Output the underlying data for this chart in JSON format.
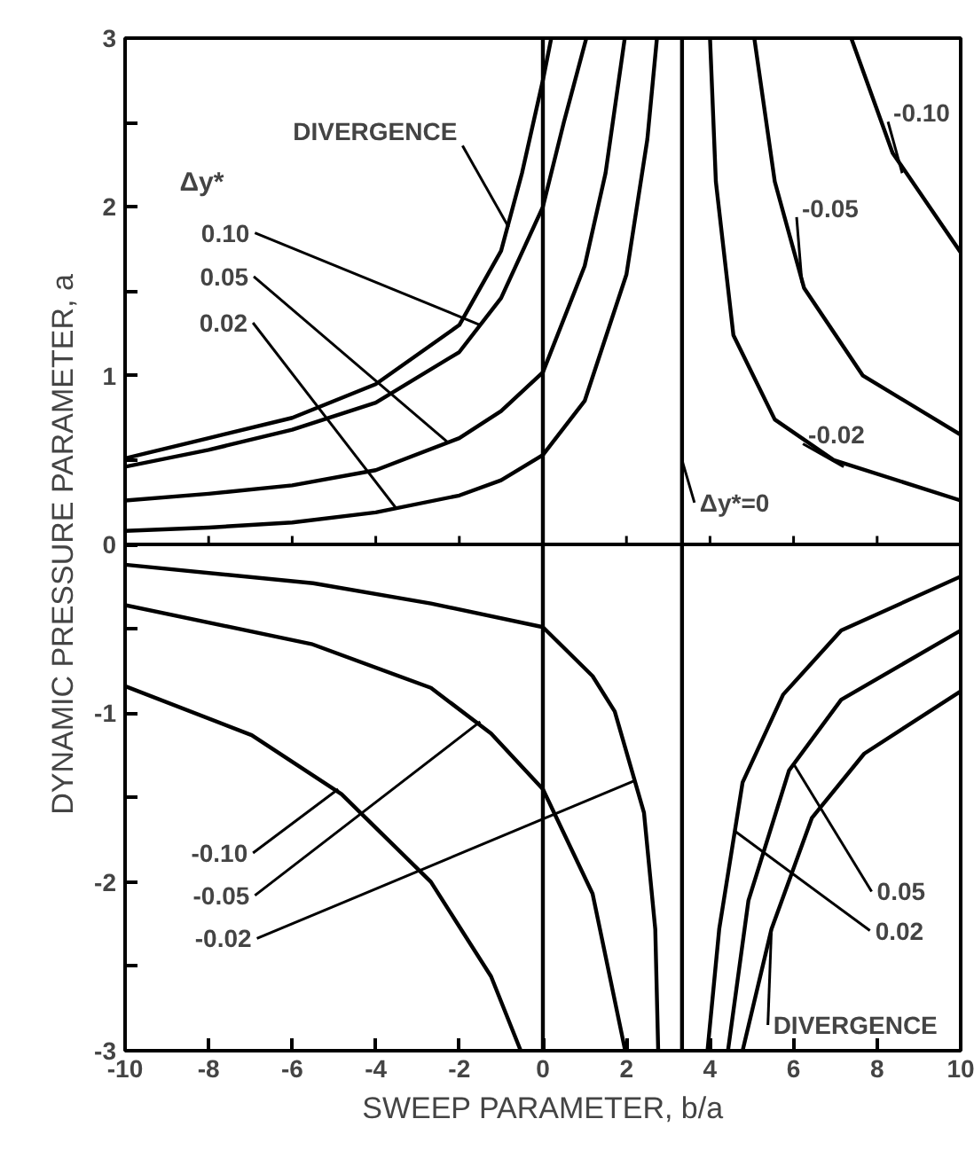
{
  "chart_data": {
    "type": "line",
    "xlabel": "SWEEP PARAMETER, b/a",
    "ylabel": "DYNAMIC PRESSURE PARAMETER, a",
    "xlim": [
      -10,
      10
    ],
    "ylim": [
      -3,
      3
    ],
    "xticks": [
      -10,
      -8,
      -6,
      -4,
      -2,
      0,
      2,
      4,
      6,
      8,
      10
    ],
    "yticks": [
      -3,
      {
        "value": -2.5,
        "label": null
      },
      -2,
      {
        "value": -1.5,
        "label": null
      },
      -1,
      {
        "value": -0.5,
        "label": null
      },
      0,
      {
        "value": 0.5,
        "label": null
      },
      1,
      {
        "value": 1.5,
        "label": null
      },
      2,
      {
        "value": 2.5,
        "label": null
      },
      3
    ],
    "grid": false,
    "marker": "none",
    "line_style": "solid",
    "legend_title": "Δy*",
    "series": [
      {
        "color": "#000000",
        "x": [
          -10,
          -8,
          -6,
          -4,
          -2,
          -1,
          -0.5,
          0,
          0.2
        ],
        "values": [
          0.51,
          0.63,
          0.75,
          0.95,
          1.3,
          1.74,
          2.2,
          2.75,
          3
        ]
      },
      {
        "color": "#000000",
        "x": [
          -10,
          -8,
          -6,
          -4,
          -2,
          -1,
          0,
          0.5,
          1.04
        ],
        "values": [
          0.46,
          0.56,
          0.68,
          0.84,
          1.14,
          1.46,
          2.0,
          2.5,
          3
        ]
      },
      {
        "color": "#000000",
        "x": [
          -10,
          -8,
          -6,
          -4,
          -2,
          -1,
          0,
          1,
          1.5,
          1.96
        ],
        "values": [
          0.26,
          0.3,
          0.35,
          0.44,
          0.63,
          0.79,
          1.02,
          1.65,
          2.2,
          3
        ]
      },
      {
        "color": "#000000",
        "x": [
          -10,
          -8,
          -6,
          -4,
          -2,
          -1,
          0,
          1,
          2,
          2.5,
          2.73
        ],
        "values": [
          0.08,
          0.1,
          0.13,
          0.19,
          0.29,
          0.38,
          0.53,
          0.85,
          1.6,
          2.4,
          3
        ]
      },
      {
        "color": "#000000",
        "x": [
          4.0,
          4.14,
          4.56,
          5.55,
          6.96,
          10
        ],
        "values": [
          3,
          2.15,
          1.24,
          0.74,
          0.5,
          0.26
        ]
      },
      {
        "color": "#000000",
        "x": [
          5.06,
          5.55,
          6.25,
          7.66,
          10
        ],
        "values": [
          3,
          2.15,
          1.52,
          1.0,
          0.65
        ]
      },
      {
        "color": "#000000",
        "x": [
          7.38,
          8.37,
          10
        ],
        "values": [
          3,
          2.32,
          1.73
        ]
      },
      {
        "color": "#000000",
        "x": [
          -10,
          -5.5,
          -2.68,
          0,
          1.19,
          1.72,
          2.42,
          2.69,
          2.76
        ],
        "values": [
          -0.12,
          -0.23,
          -0.35,
          -0.49,
          -0.78,
          -0.99,
          -1.59,
          -2.28,
          -3
        ]
      },
      {
        "color": "#000000",
        "x": [
          -10,
          -5.54,
          -2.68,
          -1.24,
          0,
          1.19,
          1.97
        ],
        "values": [
          -0.36,
          -0.59,
          -0.85,
          -1.12,
          -1.45,
          -2.07,
          -3
        ]
      },
      {
        "color": "#000000",
        "x": [
          -10,
          -6.97,
          -4.82,
          -2.68,
          -1.24,
          -0.53
        ],
        "values": [
          -0.84,
          -1.13,
          -1.48,
          -2.0,
          -2.56,
          -3
        ]
      },
      {
        "color": "#000000",
        "x": [
          3.94,
          4.22,
          4.78,
          5.75,
          7.14,
          10
        ],
        "values": [
          -3,
          -2.28,
          -1.41,
          -0.89,
          -0.51,
          -0.19
        ]
      },
      {
        "color": "#000000",
        "x": [
          4.43,
          4.92,
          5.89,
          7.14,
          10
        ],
        "values": [
          -3,
          -2.11,
          -1.34,
          -0.92,
          -0.51
        ]
      },
      {
        "color": "#000000",
        "x": [
          4.78,
          5.47,
          6.44,
          7.69,
          10
        ],
        "values": [
          -3,
          -2.28,
          -1.62,
          -1.24,
          -0.87
        ]
      },
      {
        "color": "#000000",
        "x": [
          3.33,
          3.33
        ],
        "values": [
          -3,
          3
        ]
      },
      {
        "color": "#000000",
        "x": [
          0,
          0
        ],
        "values": [
          -3,
          3
        ]
      }
    ],
    "ref_lines": [
      {
        "axis": "y",
        "value": 0
      }
    ],
    "annotations": [
      {
        "text": "DIVERGENCE",
        "x": -0.82,
        "y": 1.88
      },
      {
        "text": "0.10",
        "x": -1.5,
        "y": 1.3
      },
      {
        "text": "0.05",
        "x": -2.25,
        "y": 0.6
      },
      {
        "text": "0.02",
        "x": -3.5,
        "y": 0.21
      },
      {
        "text": "-0.10",
        "x": 8.6,
        "y": 2.2
      },
      {
        "text": "-0.05",
        "x": 6.2,
        "y": 1.55
      },
      {
        "text": "-0.02",
        "x": 7.2,
        "y": 0.46
      },
      {
        "text": "-0.10",
        "x": -4.9,
        "y": -1.45
      },
      {
        "text": "-0.05",
        "x": -1.5,
        "y": -1.05
      },
      {
        "text": "-0.02",
        "x": 2.2,
        "y": -1.4
      },
      {
        "text": "0.05",
        "x": 6.0,
        "y": -1.3
      },
      {
        "text": "0.02",
        "x": 4.6,
        "y": -1.7
      },
      {
        "text": "DIVERGENCE",
        "x": 5.47,
        "y": -2.28
      },
      {
        "text": "Δy*=0",
        "x": 3.33,
        "y": 0.5
      }
    ]
  }
}
